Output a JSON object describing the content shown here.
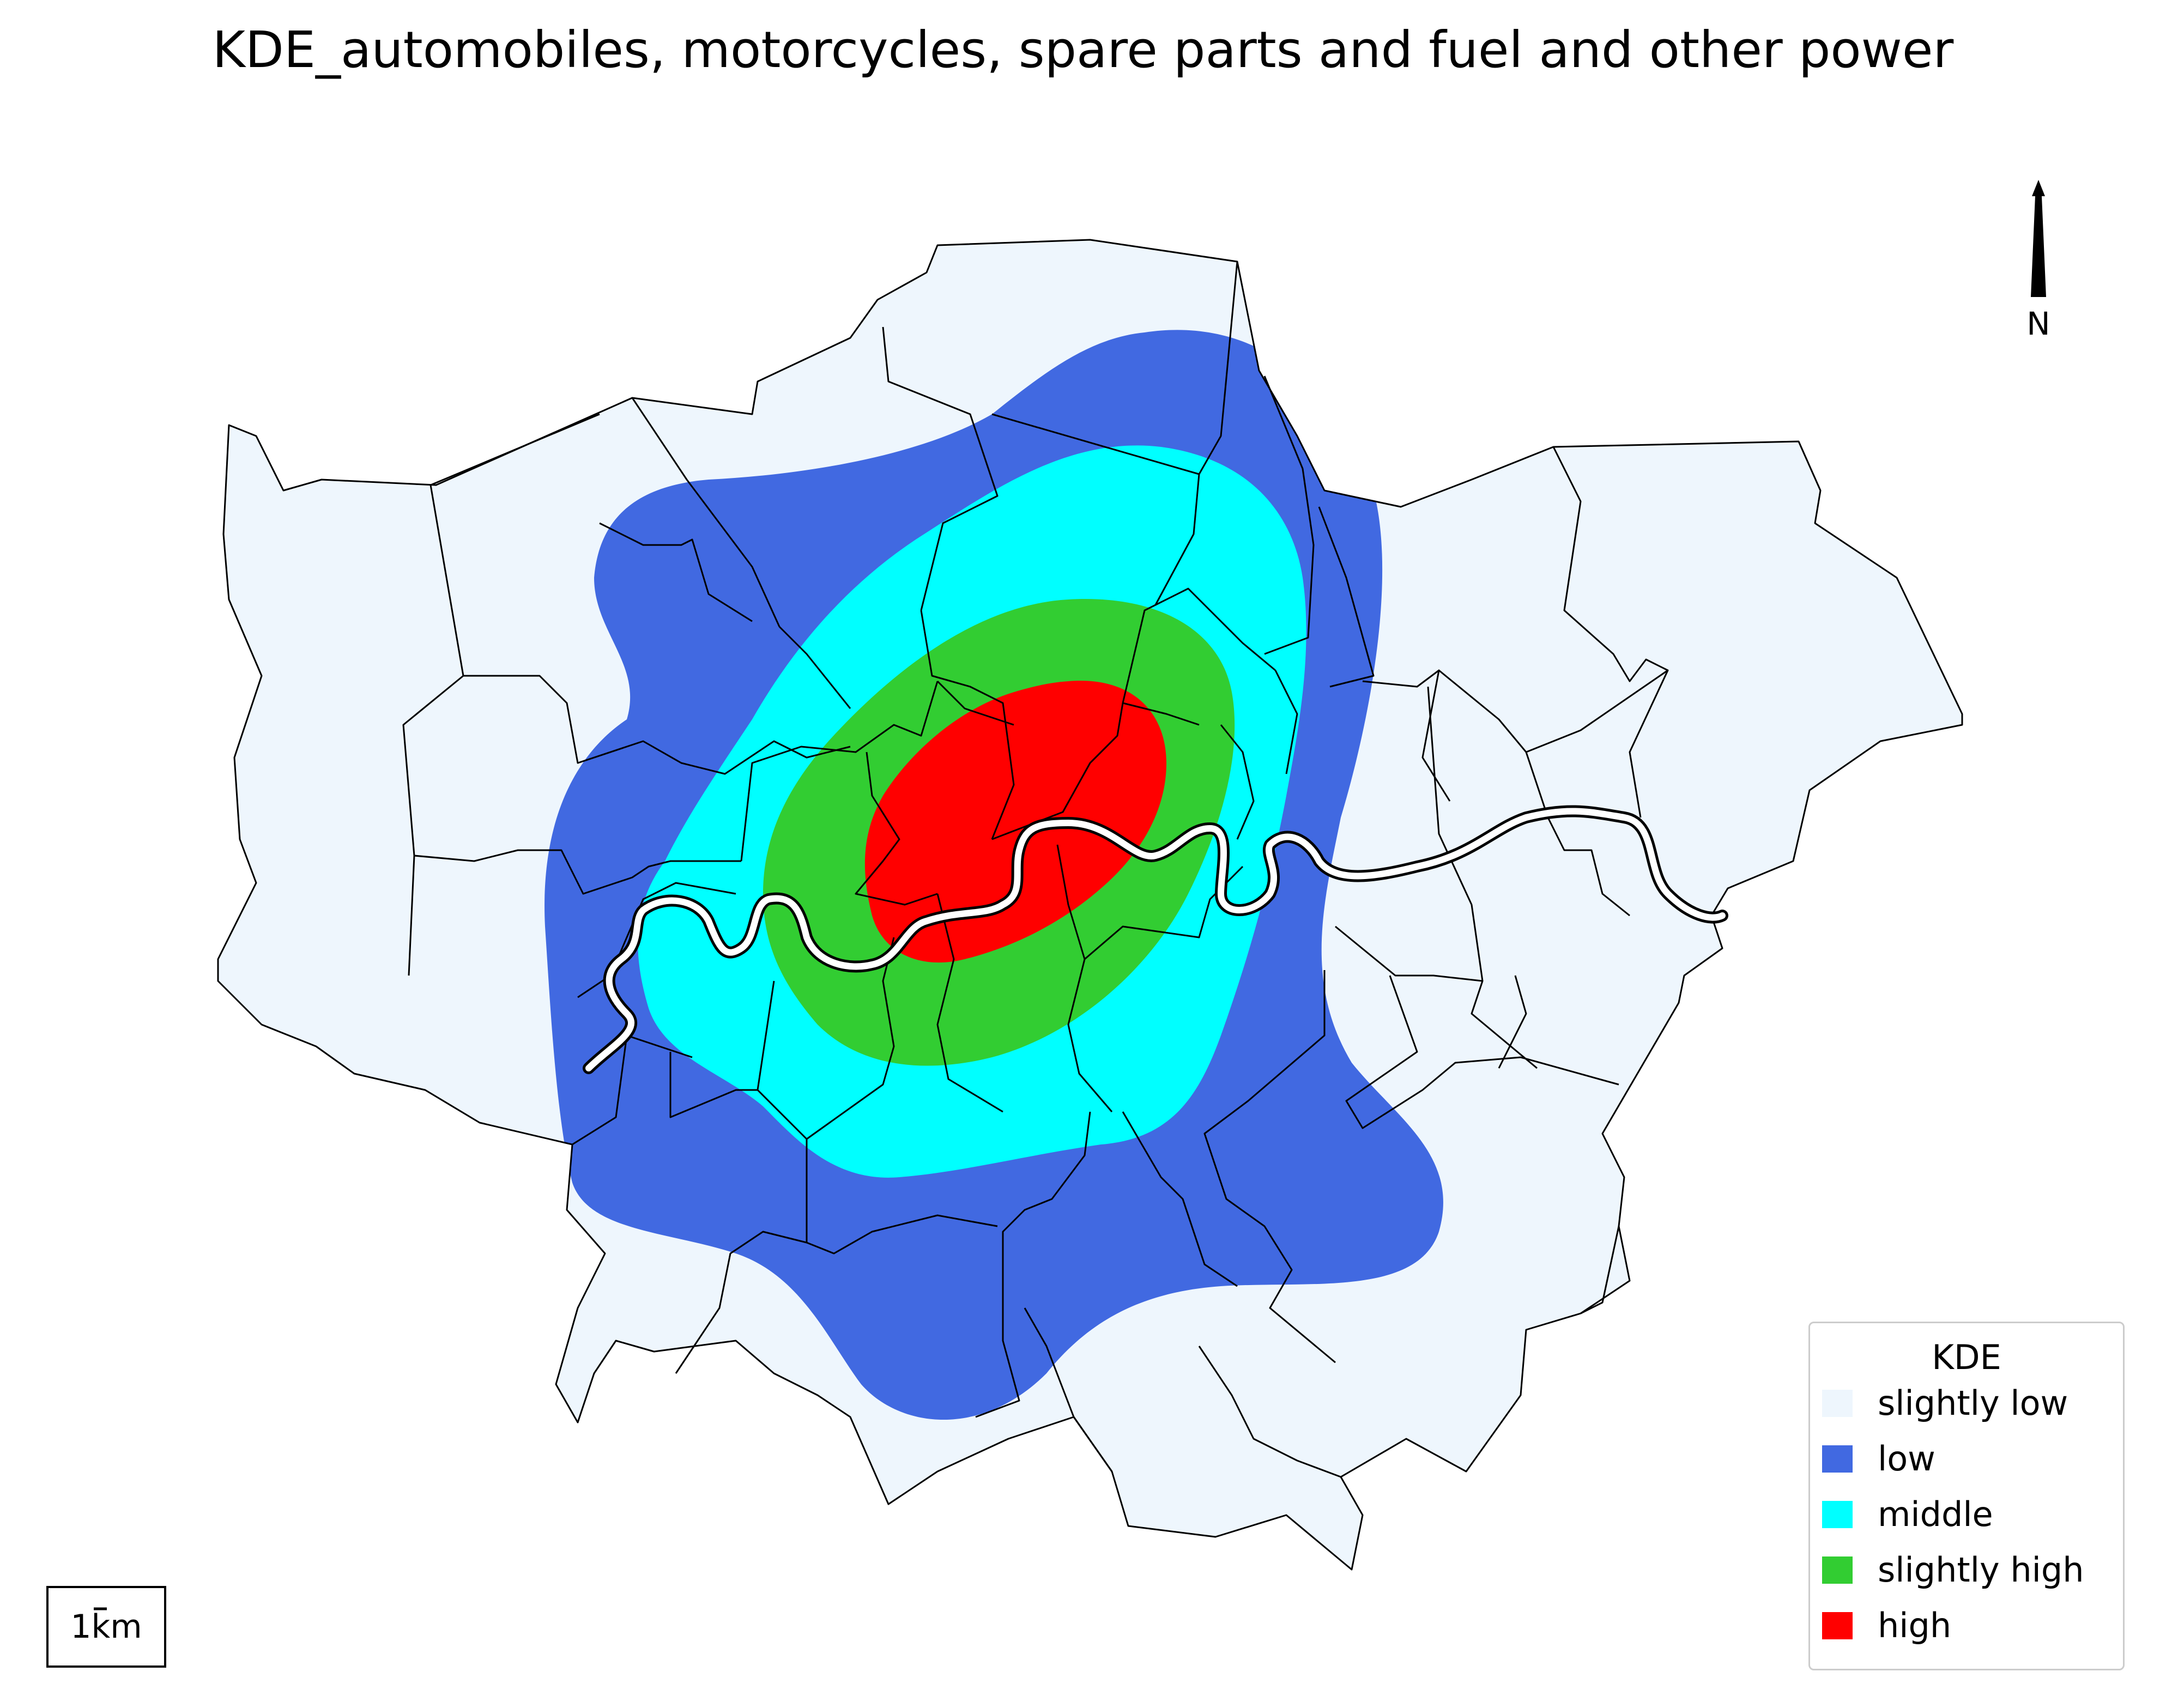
{
  "title": "KDE_automobiles, motorcycles, spare parts and fuel and other power",
  "legend": {
    "title": "KDE",
    "items": [
      {
        "label": "slightly low",
        "color": "#eef6fd"
      },
      {
        "label": "low",
        "color": "#4169e1"
      },
      {
        "label": "middle",
        "color": "#00ffff"
      },
      {
        "label": "slightly high",
        "color": "#32cd32"
      },
      {
        "label": "high",
        "color": "#ff0000"
      }
    ]
  },
  "north_arrow": {
    "label": "N"
  },
  "scale_bar": {
    "label": "1km"
  },
  "map": {
    "region": "Greater London boroughs",
    "river": "River Thames",
    "colors": {
      "base": "#eef6fd",
      "low": "#4169e1",
      "middle": "#00ffff",
      "slightly_high": "#32cd32",
      "high": "#ff0000",
      "boundary": "#000000",
      "river": "#ffffff"
    }
  }
}
